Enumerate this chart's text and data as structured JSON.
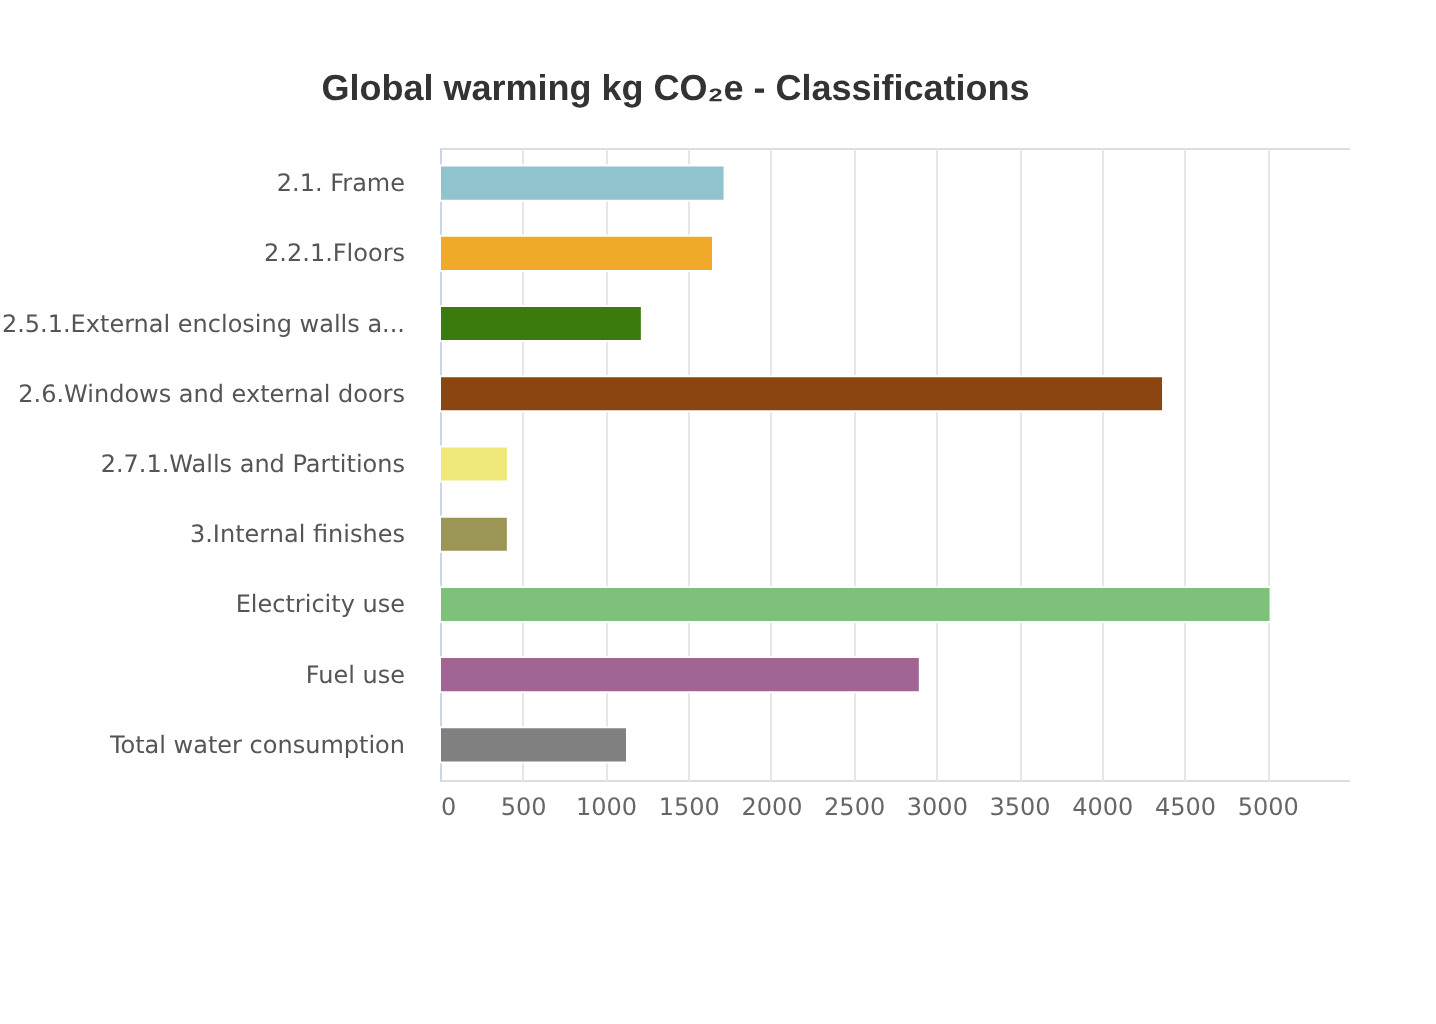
{
  "chart_data": {
    "type": "bar",
    "orientation": "horizontal",
    "title": "Global warming kg CO₂e - Classifications",
    "categories": [
      "2.1. Frame",
      "2.2.1.Floors",
      "2.5.1.External enclosing walls a...",
      "2.6.Windows and external doors",
      "2.7.1.Walls and Partitions",
      "3.Internal finishes",
      "Electricity use",
      "Fuel use",
      "Total water consumption"
    ],
    "values": [
      1720,
      1650,
      1220,
      4370,
      410,
      410,
      5020,
      2900,
      1130
    ],
    "colors": [
      "#91c3cf",
      "#f0a929",
      "#3b7a0c",
      "#8b4511",
      "#f0e97a",
      "#9c9656",
      "#7ec17a",
      "#a06594",
      "#808080"
    ],
    "xlim": [
      0,
      5500
    ],
    "xticks": [
      0,
      500,
      1000,
      1500,
      2000,
      2500,
      3000,
      3500,
      4000,
      4500,
      5000
    ],
    "grid": "x"
  }
}
